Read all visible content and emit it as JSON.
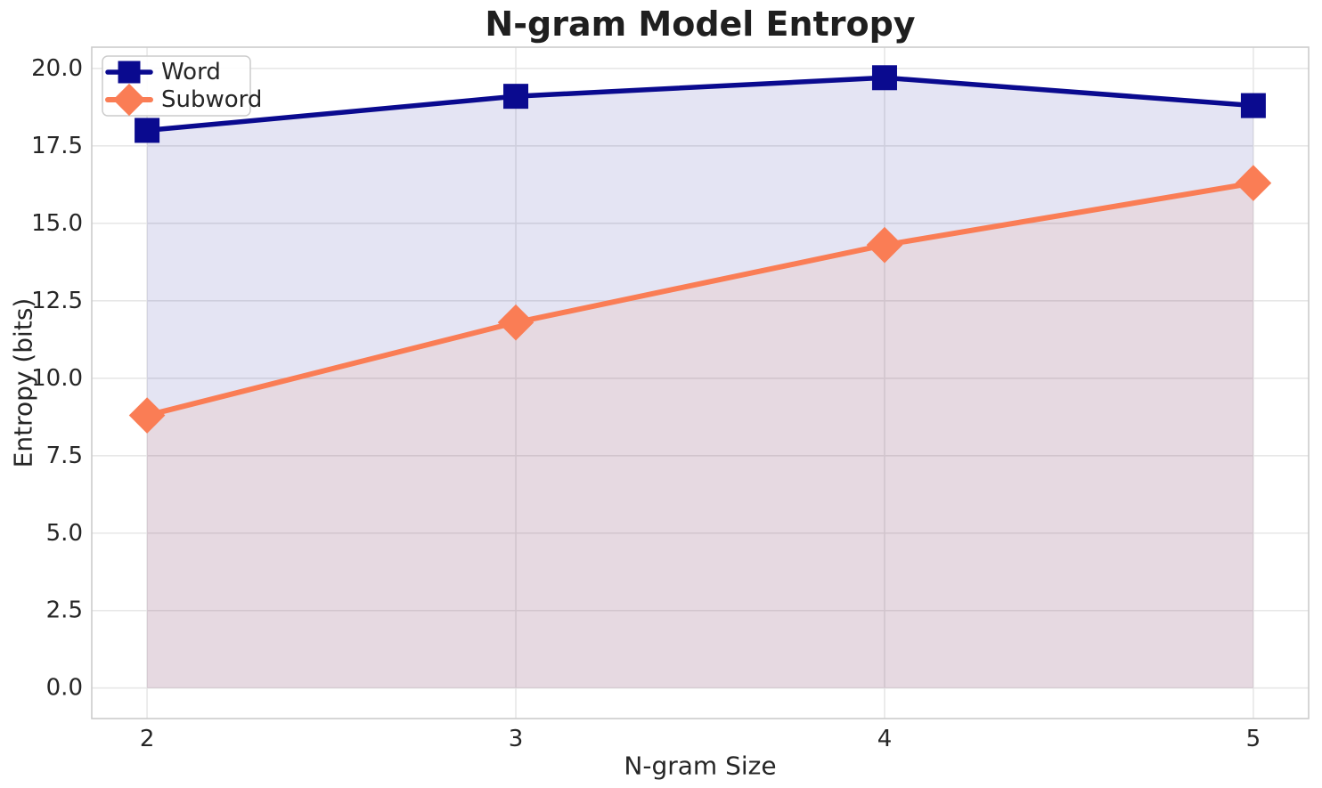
{
  "figure": {
    "background": "#ffffff"
  },
  "chart_data": {
    "type": "line",
    "title": "N-gram Model Entropy",
    "xlabel": "N-gram Size",
    "ylabel": "Entropy (bits)",
    "x": [
      2,
      3,
      4,
      5
    ],
    "series": [
      {
        "name": "Word",
        "values": [
          18.0,
          19.1,
          19.7,
          18.8
        ],
        "color": "#0a0a8f",
        "marker": "square",
        "line_width": 5.5,
        "fill_alpha": 0.11
      },
      {
        "name": "Subword",
        "values": [
          8.8,
          11.8,
          14.3,
          16.3
        ],
        "color": "#fa7d55",
        "marker": "diamond",
        "line_width": 6,
        "fill_alpha": 0.11
      }
    ],
    "xlim": [
      1.85,
      5.15
    ],
    "ylim": [
      -0.985,
      20.685
    ],
    "xticks": [
      2,
      3,
      4,
      5
    ],
    "xtick_labels": [
      "2",
      "3",
      "4",
      "5"
    ],
    "yticks": [
      0.0,
      2.5,
      5.0,
      7.5,
      10.0,
      12.5,
      15.0,
      17.5,
      20.0
    ],
    "ytick_labels": [
      "0.0",
      "2.5",
      "5.0",
      "7.5",
      "10.0",
      "12.5",
      "15.0",
      "17.5",
      "20.0"
    ],
    "grid": true,
    "fill_to_zero": true,
    "legend_position": "upper-left"
  },
  "styles": {
    "grid_color": "#e7e7e7",
    "spine_color": "#cccccc",
    "text_color": "#262626",
    "title_color": "#1f1f1f",
    "legend_border_color": "#cccccc",
    "legend_background": "#ffffff"
  }
}
